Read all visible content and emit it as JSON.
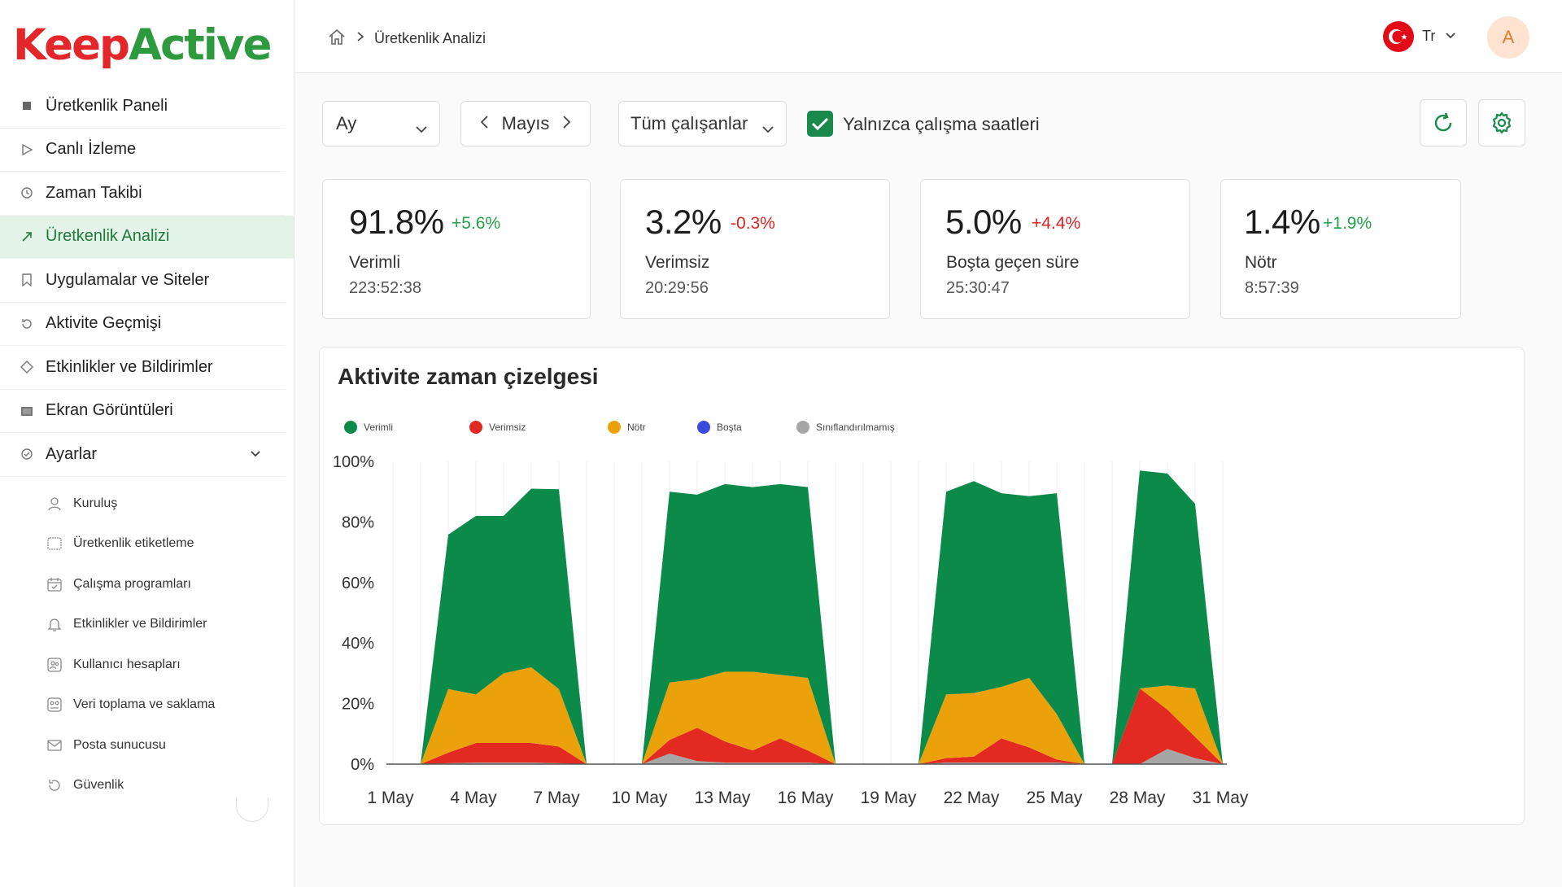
{
  "brand": {
    "part1": "Keep",
    "part2": "Active"
  },
  "sidebar": {
    "items": [
      {
        "label": "Üretkenlik Paneli",
        "icon": "square-icon"
      },
      {
        "label": "Canlı İzleme",
        "icon": "play-icon"
      },
      {
        "label": "Zaman Takibi",
        "icon": "clock-icon"
      },
      {
        "label": "Üretkenlik Analizi",
        "icon": "trend-icon",
        "active": true
      },
      {
        "label": "Uygulamalar ve Siteler",
        "icon": "bookmark-icon"
      },
      {
        "label": "Aktivite Geçmişi",
        "icon": "history-icon"
      },
      {
        "label": "Etkinlikler ve Bildirimler",
        "icon": "diamond-icon"
      },
      {
        "label": "Ekran Görüntüleri",
        "icon": "screenshot-icon"
      },
      {
        "label": "Ayarlar",
        "icon": "settings-icon"
      }
    ],
    "settings_children": [
      {
        "label": "Kuruluş",
        "icon": "organization-icon"
      },
      {
        "label": "Üretkenlik etiketleme",
        "icon": "tag-icon"
      },
      {
        "label": "Çalışma programları",
        "icon": "calendar-icon"
      },
      {
        "label": "Etkinlikler ve Bildirimler",
        "icon": "bell-icon"
      },
      {
        "label": "Kullanıcı hesapları",
        "icon": "users-icon"
      },
      {
        "label": "Veri toplama ve saklama",
        "icon": "database-icon"
      },
      {
        "label": "Posta sunucusu",
        "icon": "mail-icon"
      },
      {
        "label": "Güvenlik",
        "icon": "security-icon"
      }
    ]
  },
  "header": {
    "breadcrumb": "Üretkenlik Analizi",
    "language": "Tr",
    "avatar_initial": "A"
  },
  "filters": {
    "period": "Ay",
    "month": "Mayıs",
    "employees": "Tüm çalışanlar",
    "working_hours_only": "Yalnızca çalışma saatleri",
    "working_hours_checked": true
  },
  "stats": [
    {
      "percent": "91.8%",
      "delta": "+5.6%",
      "trend": "up",
      "label": "Verimli",
      "time": "223:52:38"
    },
    {
      "percent": "3.2%",
      "delta": "-0.3%",
      "trend": "down",
      "label": "Verimsiz",
      "time": "20:29:56"
    },
    {
      "percent": "5.0%",
      "delta": "+4.4%",
      "trend": "down",
      "label": "Boşta geçen süre",
      "time": "25:30:47"
    },
    {
      "percent": "1.4%",
      "delta": "+1.9%",
      "trend": "up",
      "label": "Nötr",
      "time": "8:57:39"
    }
  ],
  "colors": {
    "productive": "#0b8a4a",
    "unproductive": "#e32a22",
    "neutral": "#eba10a",
    "idle": "#3b4be0",
    "unclassified": "#a6a6a6",
    "accent": "#1a8a4a"
  },
  "chart_data": {
    "type": "area",
    "title": "Aktivite zaman çizelgesi",
    "stacked": true,
    "ylim": [
      0,
      100
    ],
    "y_ticks": [
      "100%",
      "80%",
      "60%",
      "40%",
      "20%",
      "0%"
    ],
    "x_tick_labels": [
      "1 May",
      "4 May",
      "7 May",
      "10 May",
      "13 May",
      "16 May",
      "19 May",
      "22 May",
      "25 May",
      "28 May",
      "31 May"
    ],
    "x": [
      1,
      2,
      3,
      4,
      5,
      6,
      7,
      8,
      9,
      10,
      11,
      12,
      13,
      14,
      15,
      16,
      17,
      18,
      19,
      20,
      21,
      22,
      23,
      24,
      25,
      26,
      27,
      28,
      29,
      30,
      31
    ],
    "series": [
      {
        "name": "Sınıflandırılmamış",
        "color_key": "unclassified",
        "values": [
          0,
          0,
          0.3,
          0.5,
          0.5,
          0.5,
          0.3,
          0,
          0,
          0,
          3.5,
          1,
          0.5,
          0.5,
          0.5,
          0.5,
          0,
          0,
          0,
          0,
          0.5,
          0.5,
          0.5,
          0.5,
          0.5,
          0,
          0,
          0,
          5,
          2,
          0
        ]
      },
      {
        "name": "Boşta",
        "color_key": "idle",
        "values": [
          0,
          0,
          0,
          0,
          0,
          0,
          0,
          0,
          0,
          0,
          0,
          0,
          0,
          0,
          0,
          0,
          0,
          0,
          0,
          0,
          0,
          0,
          0,
          0,
          0,
          0,
          0,
          0,
          0,
          0,
          0
        ]
      },
      {
        "name": "Verimsiz",
        "color_key": "unproductive",
        "values": [
          0,
          0,
          3.5,
          6.5,
          6.5,
          6.5,
          5.5,
          0,
          0,
          0,
          4.5,
          11,
          7,
          4,
          8,
          4,
          0,
          0,
          0,
          0,
          1.5,
          2,
          8,
          5,
          1,
          0,
          0,
          25,
          13,
          7,
          0
        ]
      },
      {
        "name": "Nötr",
        "color_key": "neutral",
        "values": [
          0,
          0,
          21,
          16,
          23,
          25,
          19,
          0,
          0,
          0,
          19,
          16,
          23,
          26,
          21,
          24,
          0,
          0,
          0,
          0,
          21,
          21,
          17,
          23,
          15,
          0,
          0,
          0,
          8,
          16,
          0
        ]
      },
      {
        "name": "Verimli",
        "color_key": "productive",
        "values": [
          0,
          0,
          51,
          59,
          52,
          59,
          66,
          0,
          0,
          0,
          63,
          61,
          62,
          61,
          63,
          63,
          0,
          0,
          0,
          0,
          67,
          70,
          64,
          60,
          73,
          0,
          0,
          72,
          70,
          61,
          0
        ]
      }
    ],
    "legend_order": [
      "Verimli",
      "Verimsiz",
      "Nötr",
      "Boşta",
      "Sınıflandırılmamış"
    ],
    "legend_placement": "top-left",
    "grid": "vertical"
  }
}
